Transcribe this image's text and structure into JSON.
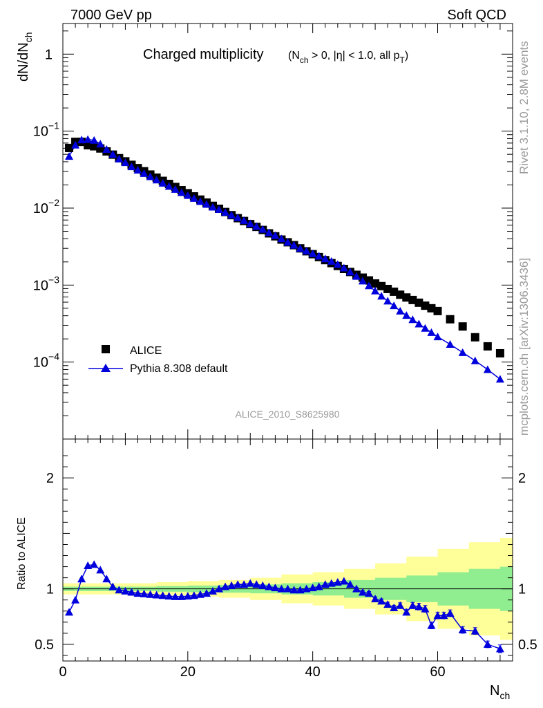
{
  "header": {
    "left": "7000 GeV pp",
    "right": "Soft QCD"
  },
  "side": {
    "rivet": "Rivet 3.1.10,  2.8M events",
    "mcplots": "mcplots.cern.ch [arXiv:1306.3436]"
  },
  "chart_data": [
    {
      "type": "scatter",
      "title_main": "Charged multiplicity",
      "title_sub": "(N",
      "title_sub_ch": "ch",
      "title_sub_rest": " > 0, |η| < 1.0, all p",
      "title_sub_T": "T",
      "title_sub_end": ")",
      "ylabel_main": "dN/dN",
      "ylabel_sub": "ch",
      "yscale": "log",
      "ylim": [
        1e-05,
        2.5
      ],
      "xlim": [
        0,
        72
      ],
      "analysis_id": "ALICE_2010_S8625980",
      "legend": {
        "alice": "ALICE",
        "pythia": "Pythia 8.308 default"
      },
      "yticks": [
        {
          "base": "1",
          "exp": ""
        },
        {
          "base": "10",
          "exp": "−1"
        },
        {
          "base": "10",
          "exp": "−2"
        },
        {
          "base": "10",
          "exp": "−3"
        },
        {
          "base": "10",
          "exp": "−4"
        }
      ],
      "series": [
        {
          "name": "ALICE",
          "color": "#000000",
          "marker": "square",
          "x": [
            1,
            2,
            3,
            4,
            5,
            6,
            7,
            8,
            9,
            10,
            11,
            12,
            13,
            14,
            15,
            16,
            17,
            18,
            19,
            20,
            21,
            22,
            23,
            24,
            25,
            26,
            27,
            28,
            29,
            30,
            31,
            32,
            33,
            34,
            35,
            36,
            37,
            38,
            39,
            40,
            41,
            42,
            43,
            44,
            45,
            46,
            47,
            48,
            49,
            50,
            51,
            52,
            53,
            54,
            55,
            56,
            57,
            58,
            59,
            60,
            62,
            64,
            66,
            68,
            70
          ],
          "y": [
            0.0605,
            0.0725,
            0.0725,
            0.0655,
            0.0635,
            0.0595,
            0.0545,
            0.0495,
            0.0445,
            0.0405,
            0.0365,
            0.0331,
            0.0301,
            0.0273,
            0.0249,
            0.0226,
            0.0206,
            0.0188,
            0.0171,
            0.0156,
            0.0142,
            0.0129,
            0.0118,
            0.0107,
            0.0098,
            0.0089,
            0.0081,
            0.0074,
            0.0068,
            0.0062,
            0.0057,
            0.0052,
            0.0047,
            0.0043,
            0.0039,
            0.0036,
            0.0033,
            0.003,
            0.00275,
            0.00252,
            0.00231,
            0.00211,
            0.00193,
            0.00177,
            0.00162,
            0.00148,
            0.00136,
            0.00125,
            0.00115,
            0.00105,
            0.00097,
            0.00089,
            0.00082,
            0.00075,
            0.00069,
            0.00064,
            0.00059,
            0.00054,
            0.0005,
            0.00046,
            0.00036,
            0.00029,
            0.00021,
            0.00016,
            0.00013
          ]
        },
        {
          "name": "Pythia 8.308 default",
          "color": "#0000dd",
          "marker": "triangle",
          "x": [
            1,
            2,
            3,
            4,
            5,
            6,
            7,
            8,
            9,
            10,
            11,
            12,
            13,
            14,
            15,
            16,
            17,
            18,
            19,
            20,
            21,
            22,
            23,
            24,
            25,
            26,
            27,
            28,
            29,
            30,
            31,
            32,
            33,
            34,
            35,
            36,
            37,
            38,
            39,
            40,
            41,
            42,
            43,
            44,
            45,
            46,
            47,
            48,
            49,
            50,
            51,
            52,
            53,
            54,
            55,
            56,
            57,
            58,
            59,
            60,
            62,
            64,
            66,
            68,
            70
          ],
          "y": [
            0.047,
            0.066,
            0.077,
            0.078,
            0.076,
            0.068,
            0.058,
            0.05,
            0.0435,
            0.039,
            0.0345,
            0.0312,
            0.0282,
            0.0256,
            0.0232,
            0.0211,
            0.0192,
            0.0175,
            0.0159,
            0.0146,
            0.0134,
            0.0122,
            0.0112,
            0.0103,
            0.0096,
            0.0088,
            0.0081,
            0.0075,
            0.0069,
            0.0063,
            0.0058,
            0.0053,
            0.0048,
            0.0044,
            0.004,
            0.0036,
            0.0033,
            0.003,
            0.00277,
            0.00256,
            0.00238,
            0.0022,
            0.00204,
            0.00186,
            0.00167,
            0.00148,
            0.0013,
            0.00113,
            0.00098,
            0.00084,
            0.00072,
            0.00062,
            0.00054,
            0.00046,
            0.000404,
            0.000356,
            0.000313,
            0.000275,
            0.000242,
            0.000213,
            0.00017,
            0.000133,
            0.000104,
            8e-05,
            6e-05
          ]
        }
      ]
    },
    {
      "type": "line",
      "ylabel": "Ratio to ALICE",
      "xlabel_main": "N",
      "xlabel_sub": "ch",
      "xlim": [
        0,
        72
      ],
      "ylim": [
        0.35,
        2.35
      ],
      "xticks": [
        "0",
        "20",
        "40",
        "60"
      ],
      "yticks": [
        "0.5",
        "1",
        "2"
      ],
      "bands": {
        "green": "#90ee90",
        "yellow": "#ffff99",
        "x": [
          0,
          5,
          10,
          15,
          20,
          25,
          30,
          35,
          40,
          45,
          50,
          55,
          60,
          65,
          70,
          72
        ],
        "green_half": [
          0.02,
          0.02,
          0.02,
          0.025,
          0.03,
          0.035,
          0.04,
          0.05,
          0.06,
          0.08,
          0.1,
          0.12,
          0.15,
          0.18,
          0.2,
          0.2
        ],
        "yellow_half": [
          0.05,
          0.05,
          0.05,
          0.06,
          0.07,
          0.08,
          0.1,
          0.13,
          0.15,
          0.18,
          0.23,
          0.29,
          0.36,
          0.42,
          0.46,
          0.46
        ]
      },
      "series": [
        {
          "name": "Pythia 8.308 default",
          "color": "#0000dd",
          "x": [
            1,
            2,
            3,
            4,
            5,
            6,
            7,
            8,
            9,
            10,
            11,
            12,
            13,
            14,
            15,
            16,
            17,
            18,
            19,
            20,
            21,
            22,
            23,
            24,
            25,
            26,
            27,
            28,
            29,
            30,
            31,
            32,
            33,
            34,
            35,
            36,
            37,
            38,
            39,
            40,
            41,
            42,
            43,
            44,
            45,
            46,
            47,
            48,
            49,
            50,
            51,
            52,
            53,
            54,
            55,
            56,
            57,
            58,
            59,
            60,
            61,
            62,
            64,
            66,
            68,
            70
          ],
          "y": [
            0.79,
            0.9,
            1.09,
            1.21,
            1.22,
            1.17,
            1.09,
            1.02,
            0.99,
            0.98,
            0.97,
            0.96,
            0.955,
            0.95,
            0.945,
            0.94,
            0.935,
            0.93,
            0.93,
            0.935,
            0.94,
            0.95,
            0.96,
            0.98,
            1.0,
            1.02,
            1.03,
            1.04,
            1.04,
            1.05,
            1.04,
            1.03,
            1.02,
            1.01,
            1.0,
            1.0,
            0.99,
            0.99,
            1.0,
            1.01,
            1.02,
            1.04,
            1.05,
            1.06,
            1.07,
            1.04,
            1.0,
            0.97,
            0.96,
            0.91,
            0.89,
            0.86,
            0.83,
            0.85,
            0.79,
            0.85,
            0.84,
            0.82,
            0.67,
            0.76,
            0.76,
            0.78,
            0.63,
            0.62,
            0.5,
            0.46
          ],
          "err": [
            0.01,
            0.01,
            0.01,
            0.01,
            0.01,
            0.01,
            0.01,
            0.01,
            0.01,
            0.01,
            0.01,
            0.01,
            0.01,
            0.01,
            0.01,
            0.01,
            0.01,
            0.01,
            0.01,
            0.01,
            0.01,
            0.01,
            0.01,
            0.01,
            0.01,
            0.01,
            0.01,
            0.01,
            0.01,
            0.01,
            0.01,
            0.01,
            0.01,
            0.01,
            0.01,
            0.01,
            0.01,
            0.01,
            0.01,
            0.01,
            0.01,
            0.01,
            0.01,
            0.01,
            0.01,
            0.01,
            0.012,
            0.014,
            0.016,
            0.018,
            0.02,
            0.02,
            0.022,
            0.024,
            0.026,
            0.028,
            0.03,
            0.03,
            0.03,
            0.03,
            0.03,
            0.03,
            0.03,
            0.03,
            0.03,
            0.035
          ]
        }
      ]
    }
  ]
}
